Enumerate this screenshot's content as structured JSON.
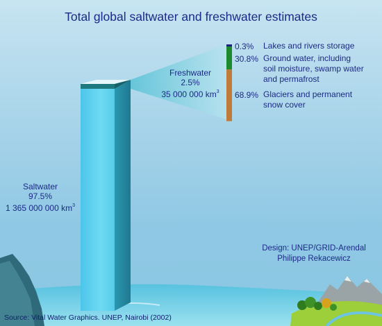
{
  "chart_data": {
    "type": "bar",
    "title": "Total global saltwater and freshwater estimates",
    "total": {
      "categories": [
        "Saltwater",
        "Freshwater"
      ],
      "values_percent": [
        97.5,
        2.5
      ],
      "values_km3": [
        1365000000,
        35000000
      ],
      "saltwater_label": "Saltwater",
      "saltwater_pct": "97.5%",
      "saltwater_volume": "1 365 000 000 km",
      "freshwater_label": "Freshwater",
      "freshwater_pct": "2.5%",
      "freshwater_volume": "35 000 000 km",
      "unit_exponent": "3"
    },
    "freshwater_breakdown": [
      {
        "pct_text": "0.3%",
        "value": 0.3,
        "label_lines": [
          "Lakes and rivers storage"
        ],
        "color": "#1a237e"
      },
      {
        "pct_text": "30.8%",
        "value": 30.8,
        "label_lines": [
          "Ground water, including",
          "soil moisture, swamp water",
          "and  permafrost"
        ],
        "color": "#1e8a2e"
      },
      {
        "pct_text": "68.9%",
        "value": 68.9,
        "label_lines": [
          "Glaciers and permanent",
          "snow cover"
        ],
        "color": "#c07a3a"
      }
    ]
  },
  "credits": {
    "design_line1": "Design: UNEP/GRID-Arendal",
    "design_line2": "Philippe Rekacewicz",
    "source": "Source: Vital Water Graphics. UNEP, Nairobi (2002)"
  },
  "colors": {
    "title_text": "#1c2a86",
    "column_front": "#5fd0ee",
    "column_side": "#2b8fa5",
    "column_top": "#1f7a80",
    "beam": "#8fd3e6"
  }
}
